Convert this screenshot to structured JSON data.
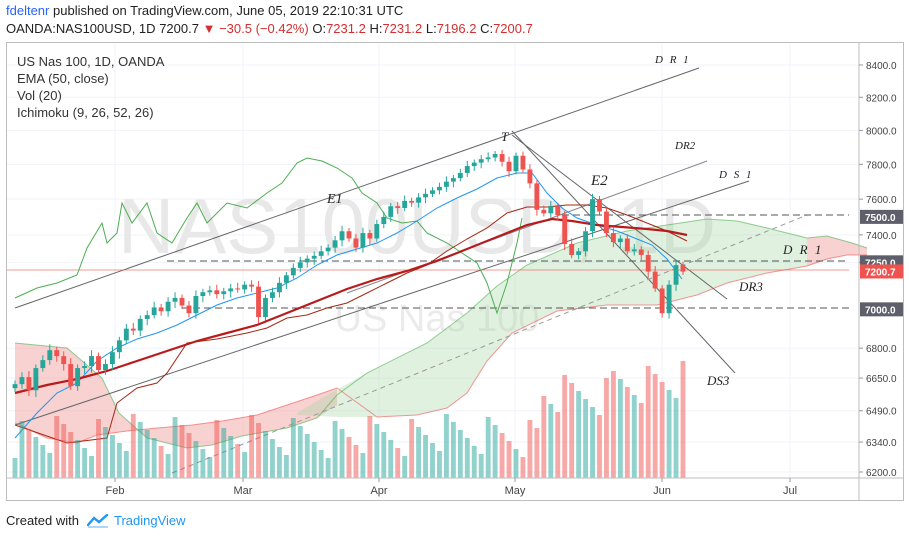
{
  "header": {
    "author": "fdeltenr",
    "published": "published on TradingView.com, June 05, 2019 22:10:31 UTC",
    "symbol_line": "OANDA:NAS100USD, 1D",
    "last": "7200.7",
    "change": "−30.5 (−0.42%)",
    "o_label": "O:",
    "o": "7231.2",
    "h_label": "H:",
    "h": "7231.2",
    "l_label": "L:",
    "l": "7196.2",
    "c_label": "C:",
    "c": "7200.7"
  },
  "legend": {
    "title": "US Nas 100, 1D, OANDA",
    "ema": "EMA (50, close)",
    "vol": "Vol (20)",
    "ichimoku": "Ichimoku (9, 26, 52, 26)"
  },
  "watermark": {
    "symbol": "NAS100USD, 1D",
    "name": "US Nas 100"
  },
  "footer": {
    "created": "Created with",
    "brand": "TradingView"
  },
  "colors": {
    "up": "#26a69a",
    "down": "#ef5350",
    "ema": "#b71c1c",
    "kijun": "#a52714",
    "tenkan": "#2196f3",
    "chikou": "#4caf50",
    "cloud_bull": "#a5d6a7",
    "cloud_bear": "#ef9a9a",
    "trend": "#666666"
  },
  "chart_data": {
    "type": "candlestick",
    "symbol": "OANDA:NAS100USD",
    "interval": "1D",
    "ylim": [
      6200,
      8500
    ],
    "y_ticks": [
      "8400.0",
      "8200.0",
      "8000.0",
      "7800.0",
      "7600.0",
      "7400.0",
      "7250.0",
      "6800.0",
      "6650.0",
      "6490.0",
      "6340.0",
      "6200.0"
    ],
    "x_ticks": [
      "Feb",
      "Mar",
      "Apr",
      "May",
      "Jun",
      "Jul"
    ],
    "price_labels": [
      {
        "text": "7500.0",
        "value": 7500,
        "kind": "level"
      },
      {
        "text": "7250.0",
        "value": 7250,
        "kind": "level"
      },
      {
        "text": "7200.7",
        "value": 7200.7,
        "kind": "last"
      },
      {
        "text": "7000.0",
        "value": 7000,
        "kind": "level"
      }
    ],
    "series": {
      "close": [
        6620,
        6655,
        6590,
        6700,
        6740,
        6790,
        6760,
        6720,
        6610,
        6700,
        6710,
        6760,
        6690,
        6720,
        6780,
        6840,
        6900,
        6890,
        6950,
        6970,
        7010,
        6990,
        7040,
        7060,
        7020,
        6980,
        7070,
        7090,
        7100,
        7080,
        7095,
        7110,
        7105,
        7130,
        7120,
        6960,
        7060,
        7090,
        7140,
        7180,
        7220,
        7250,
        7270,
        7285,
        7310,
        7330,
        7370,
        7420,
        7380,
        7330,
        7410,
        7380,
        7460,
        7500,
        7560,
        7550,
        7590,
        7580,
        7610,
        7630,
        7650,
        7670,
        7700,
        7720,
        7750,
        7790,
        7810,
        7830,
        7840,
        7860,
        7815,
        7760,
        7850,
        7770,
        7690,
        7540,
        7520,
        7560,
        7510,
        7350,
        7290,
        7310,
        7420,
        7600,
        7530,
        7410,
        7360,
        7380,
        7310,
        7320,
        7290,
        7200,
        7110,
        6980,
        7130,
        7235,
        7200
      ]
    },
    "annotations": [
      "D R 1",
      "DR2",
      "D S 1",
      "D R 1",
      "DR3",
      "DS3",
      "T",
      "E1",
      "E2"
    ]
  }
}
